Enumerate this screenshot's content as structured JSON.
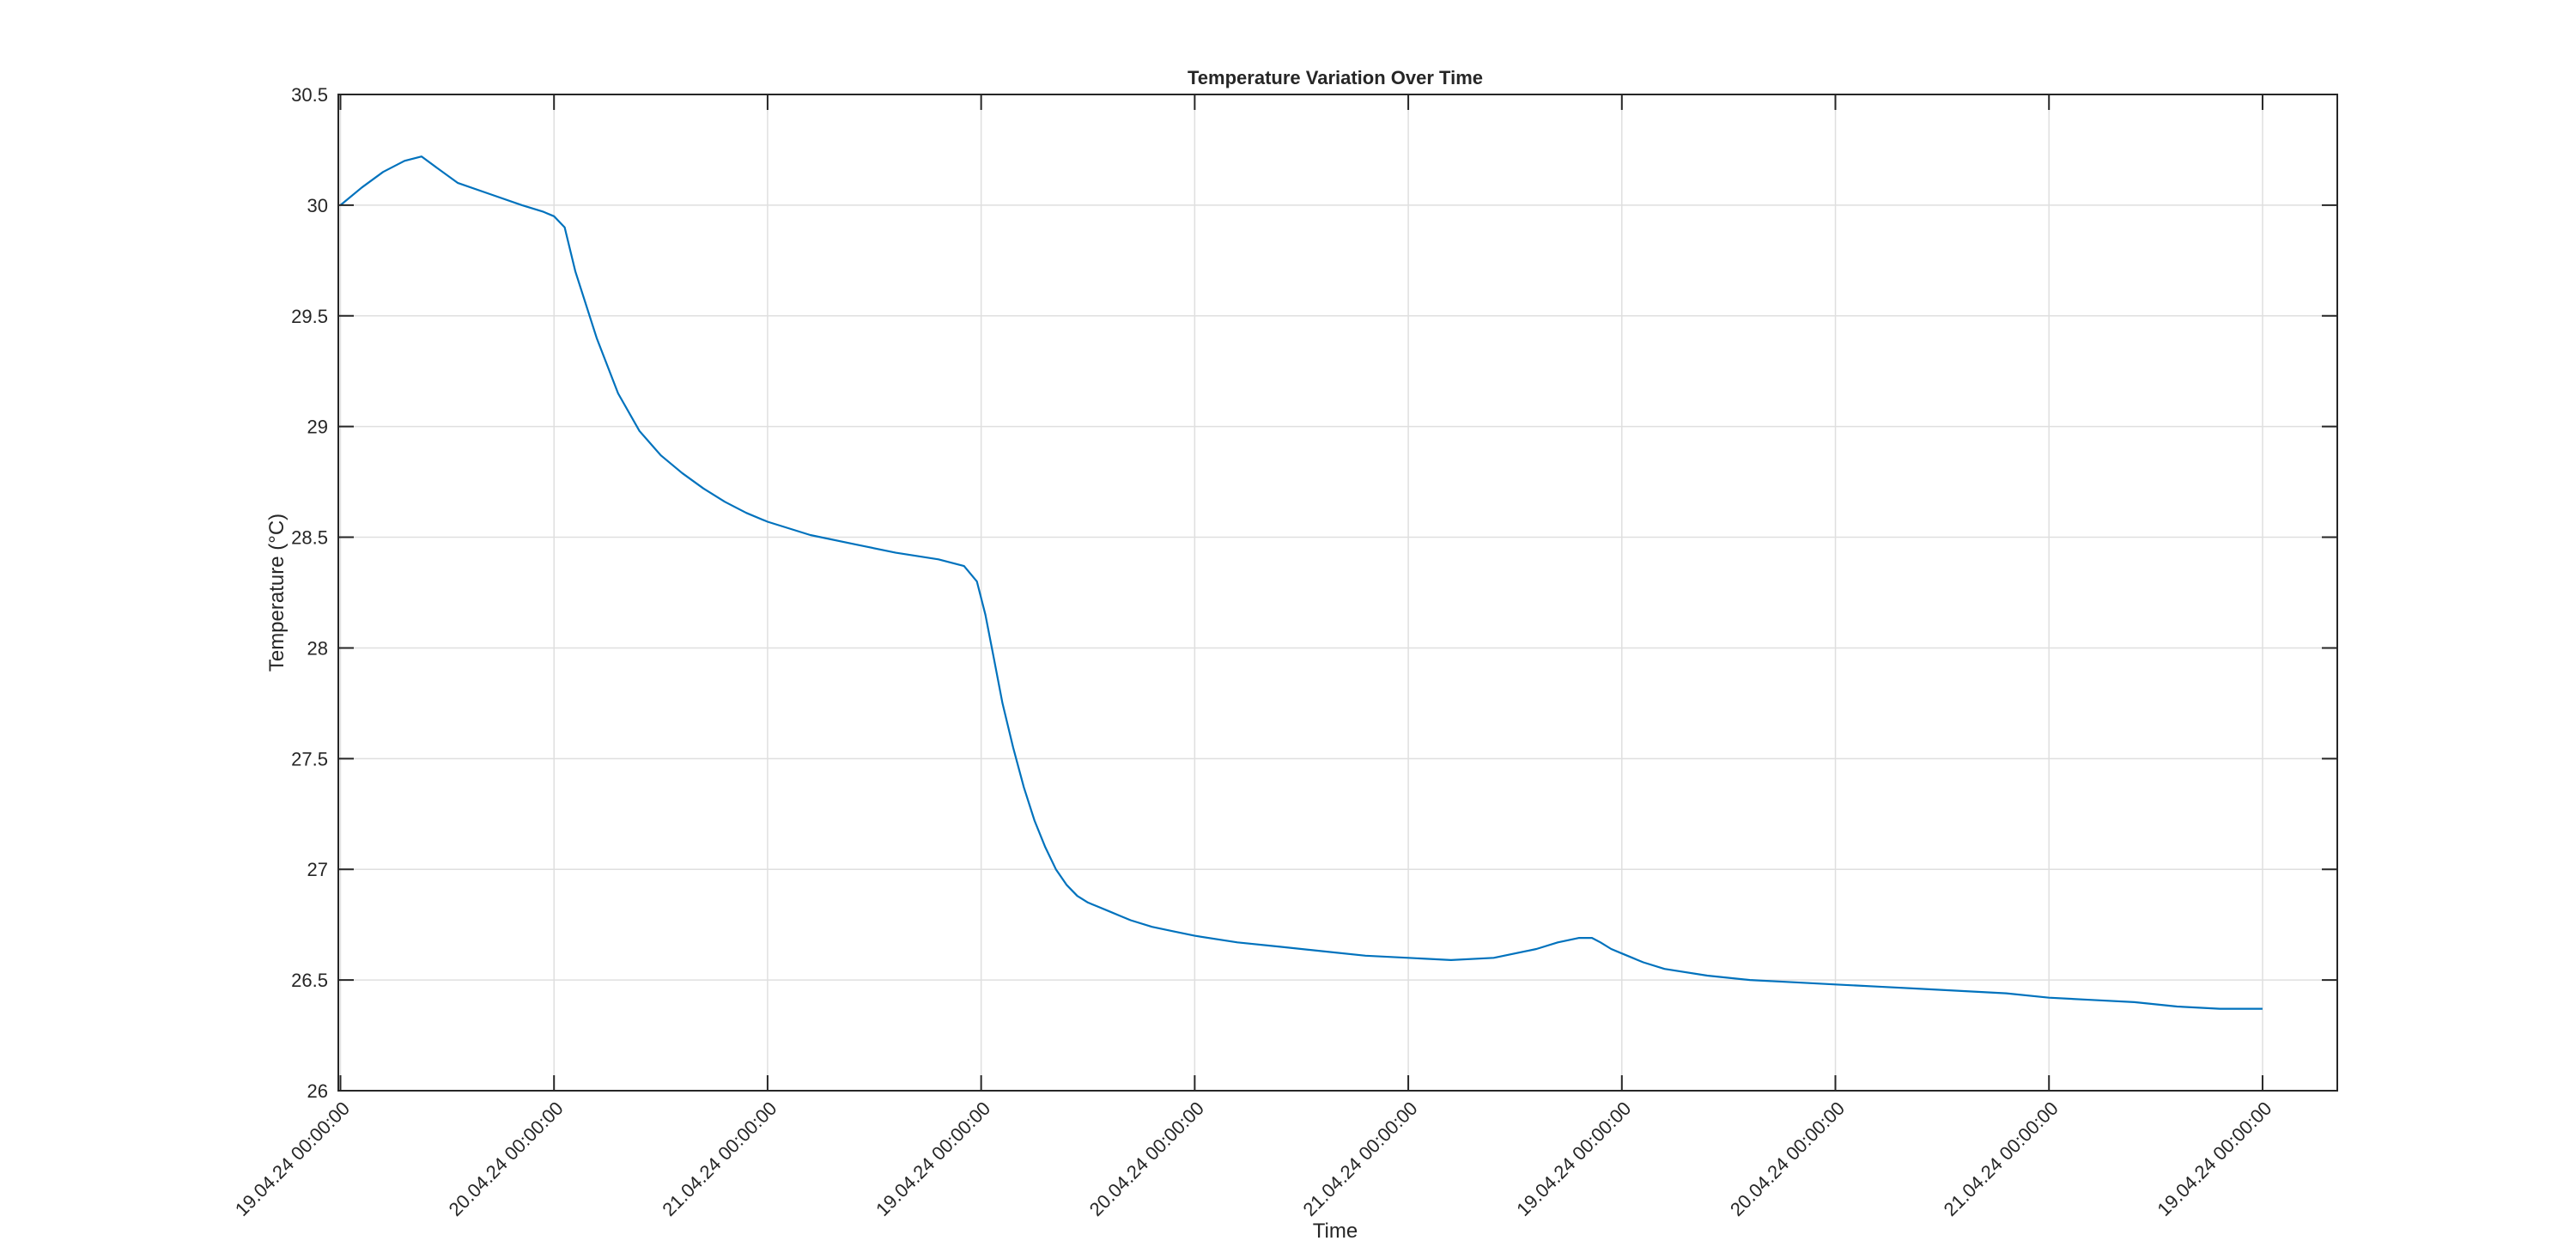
{
  "chart_data": {
    "type": "line",
    "title": "Temperature Variation Over Time",
    "xlabel": "Time",
    "ylabel": "Temperature (°C)",
    "ylim": [
      26,
      30.5
    ],
    "yticks": [
      26,
      26.5,
      27,
      27.5,
      28,
      28.5,
      29,
      29.5,
      30,
      30.5
    ],
    "ytick_labels": [
      "26",
      "26.5",
      "27",
      "27.5",
      "28",
      "28.5",
      "29",
      "29.5",
      "30",
      "30.5"
    ],
    "xlim": [
      -0.01,
      9.35
    ],
    "xticks": [
      0,
      1,
      2,
      3,
      4,
      5,
      6,
      7,
      8,
      9
    ],
    "xtick_labels": [
      "19.04.24 00:00:00",
      "20.04.24 00:00:00",
      "21.04.24 00:00:00",
      "19.04.24 00:00:00",
      "20.04.24 00:00:00",
      "21.04.24 00:00:00",
      "19.04.24 00:00:00",
      "20.04.24 00:00:00",
      "21.04.24 00:00:00",
      "19.04.24 00:00:00"
    ],
    "grid": true,
    "series": [
      {
        "color": "#0072BD",
        "x": [
          0,
          0.1,
          0.2,
          0.3,
          0.38,
          0.45,
          0.55,
          0.7,
          0.85,
          0.95,
          1.0,
          1.05,
          1.1,
          1.2,
          1.3,
          1.4,
          1.5,
          1.6,
          1.7,
          1.8,
          1.9,
          2.0,
          2.2,
          2.4,
          2.6,
          2.8,
          2.92,
          2.98,
          3.02,
          3.06,
          3.1,
          3.15,
          3.2,
          3.25,
          3.3,
          3.35,
          3.4,
          3.45,
          3.5,
          3.55,
          3.6,
          3.65,
          3.7,
          3.8,
          3.9,
          4.0,
          4.2,
          4.4,
          4.6,
          4.8,
          5.0,
          5.2,
          5.4,
          5.6,
          5.7,
          5.8,
          5.86,
          5.9,
          5.95,
          6.0,
          6.05,
          6.1,
          6.2,
          6.4,
          6.6,
          6.8,
          7.0,
          7.2,
          7.4,
          7.6,
          7.8,
          8.0,
          8.2,
          8.4,
          8.6,
          8.8,
          9.0
        ],
        "y": [
          30.0,
          30.08,
          30.15,
          30.2,
          30.22,
          30.17,
          30.1,
          30.05,
          30.0,
          29.97,
          29.95,
          29.9,
          29.7,
          29.4,
          29.15,
          28.98,
          28.87,
          28.79,
          28.72,
          28.66,
          28.61,
          28.57,
          28.51,
          28.47,
          28.43,
          28.4,
          28.37,
          28.3,
          28.15,
          27.95,
          27.75,
          27.55,
          27.37,
          27.22,
          27.1,
          27.0,
          26.93,
          26.88,
          26.85,
          26.83,
          26.81,
          26.79,
          26.77,
          26.74,
          26.72,
          26.7,
          26.67,
          26.65,
          26.63,
          26.61,
          26.6,
          26.59,
          26.6,
          26.64,
          26.67,
          26.69,
          26.69,
          26.67,
          26.64,
          26.62,
          26.6,
          26.58,
          26.55,
          26.52,
          26.5,
          26.49,
          26.48,
          26.47,
          26.46,
          26.45,
          26.44,
          26.42,
          26.41,
          26.4,
          26.38,
          26.37,
          26.37
        ]
      }
    ]
  }
}
